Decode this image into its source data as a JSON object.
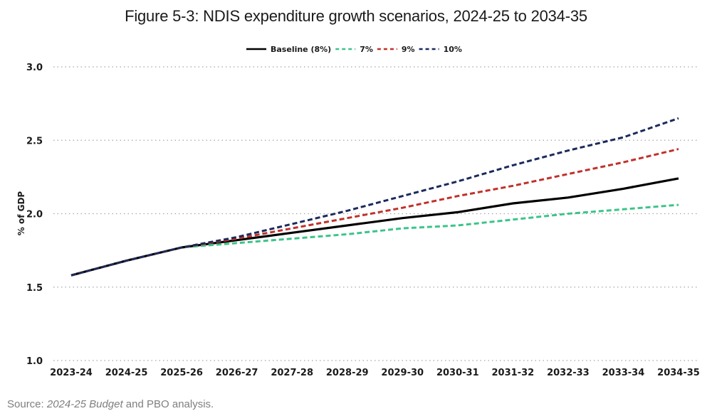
{
  "chart_data": {
    "type": "line",
    "title": "Figure 5-3: NDIS expenditure growth scenarios, 2024-25 to 2034-35",
    "xlabel": "",
    "ylabel": "% of GDP",
    "ylim": [
      1.0,
      3.0
    ],
    "yticks": [
      "1.0",
      "1.5",
      "2.0",
      "2.5",
      "3.0"
    ],
    "ytick_values": [
      1.0,
      1.5,
      2.0,
      2.5,
      3.0
    ],
    "grid": "horizontal dotted",
    "legend_position": "top-center",
    "categories": [
      "2023-24",
      "2024-25",
      "2025-26",
      "2026-27",
      "2027-28",
      "2028-29",
      "2029-30",
      "2030-31",
      "2031-32",
      "2032-33",
      "2033-34",
      "2034-35"
    ],
    "series": [
      {
        "name": "Baseline (8%)",
        "color": "#000000",
        "style": "solid",
        "values": [
          1.58,
          1.68,
          1.77,
          1.82,
          1.87,
          1.92,
          1.97,
          2.01,
          2.07,
          2.11,
          2.17,
          2.24
        ]
      },
      {
        "name": "7%",
        "color": "#3cc48a",
        "style": "dashed",
        "values": [
          1.58,
          1.68,
          1.77,
          1.8,
          1.83,
          1.86,
          1.9,
          1.92,
          1.96,
          2.0,
          2.03,
          2.06
        ]
      },
      {
        "name": "9%",
        "color": "#c0312b",
        "style": "dashed",
        "values": [
          1.58,
          1.68,
          1.77,
          1.83,
          1.9,
          1.97,
          2.04,
          2.12,
          2.19,
          2.27,
          2.35,
          2.44
        ]
      },
      {
        "name": "10%",
        "color": "#1b2a5c",
        "style": "dashed",
        "values": [
          1.58,
          1.68,
          1.77,
          1.84,
          1.93,
          2.02,
          2.12,
          2.22,
          2.33,
          2.43,
          2.52,
          2.65
        ]
      }
    ]
  },
  "source": {
    "prefix": "Source: ",
    "italic": "2024-25 Budget",
    "suffix": " and PBO analysis."
  }
}
